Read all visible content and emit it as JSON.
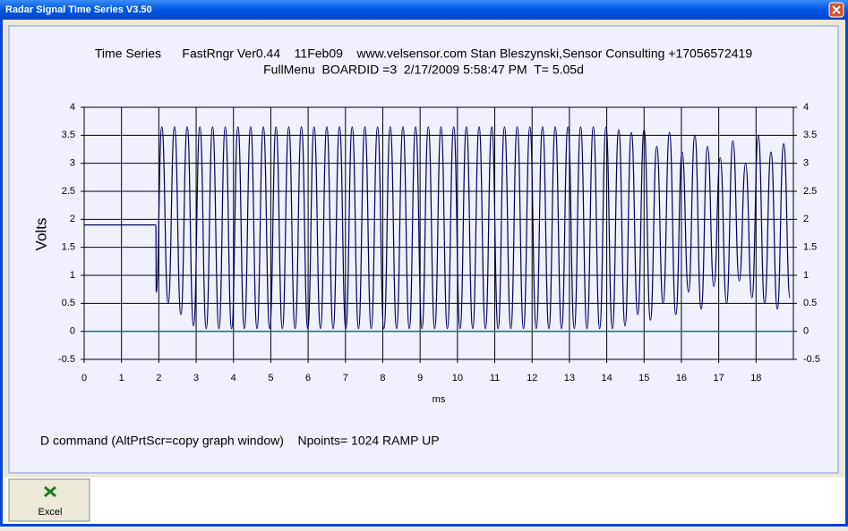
{
  "window": {
    "title": "Radar Signal Time Series V3.50"
  },
  "button": {
    "label": "Excel"
  },
  "chart_data": {
    "type": "line",
    "title": "Time Series      FastRngr Ver0.44    11Feb09    www.velsensor.com Stan Bleszynski,Sensor Consulting +17056572419",
    "subtitle": "FullMenu  BOARDID =3  2/17/2009 5:58:47 PM  T= 5.05d",
    "x_label": "ms",
    "y_label": "Volts",
    "footer": "D command (AltPrtScr=copy graph window)    Npoints= 1024 RAMP UP",
    "color": "#000060",
    "zero_line_color": "#008080",
    "grid": true,
    "xlim": [
      0,
      19
    ],
    "xticks": [
      0,
      1,
      2,
      3,
      4,
      5,
      6,
      7,
      8,
      9,
      10,
      11,
      12,
      13,
      14,
      15,
      16,
      17,
      18
    ],
    "ylim": [
      -0.5,
      4
    ],
    "yticks": [
      -0.5,
      0,
      0.5,
      1,
      1.5,
      2,
      2.5,
      3,
      3.5,
      4
    ],
    "x": [
      0,
      1.92,
      1.93,
      2.08,
      2.25,
      2.42,
      2.59,
      2.76,
      2.93,
      3.1,
      3.27,
      3.44,
      3.61,
      3.78,
      3.95,
      4.12,
      4.29,
      4.46,
      4.63,
      4.8,
      4.97,
      5.14,
      5.31,
      5.48,
      5.65,
      5.82,
      5.99,
      6.16,
      6.33,
      6.5,
      6.67,
      6.84,
      7.01,
      7.18,
      7.35,
      7.52,
      7.69,
      7.86,
      8.03,
      8.2,
      8.37,
      8.54,
      8.71,
      8.88,
      9.05,
      9.22,
      9.39,
      9.56,
      9.73,
      9.9,
      10.07,
      10.24,
      10.41,
      10.58,
      10.75,
      10.92,
      11.09,
      11.26,
      11.43,
      11.6,
      11.77,
      11.94,
      12.11,
      12.28,
      12.45,
      12.62,
      12.79,
      12.96,
      13.13,
      13.3,
      13.47,
      13.64,
      13.81,
      13.98,
      14.15,
      14.32,
      14.49,
      14.66,
      14.83,
      15.0,
      15.17,
      15.34,
      15.51,
      15.68,
      15.85,
      16.02,
      16.19,
      16.36,
      16.53,
      16.7,
      16.87,
      17.04,
      17.21,
      17.38,
      17.55,
      17.72,
      17.89,
      18.06,
      18.23,
      18.4,
      18.57,
      18.74,
      18.91
    ],
    "values": [
      1.9,
      1.9,
      0.7,
      3.65,
      0.5,
      3.65,
      0.3,
      3.65,
      0.1,
      3.65,
      0.05,
      3.65,
      0.05,
      3.65,
      0.05,
      3.65,
      0.05,
      3.65,
      0.05,
      3.65,
      0.05,
      3.65,
      0.05,
      3.65,
      0.05,
      3.65,
      0.05,
      3.65,
      0.05,
      3.65,
      0.05,
      3.65,
      0.05,
      3.65,
      0.05,
      3.65,
      0.05,
      3.65,
      0.05,
      3.65,
      0.05,
      3.65,
      0.05,
      3.65,
      0.05,
      3.65,
      0.05,
      3.65,
      0.05,
      3.65,
      0.05,
      3.65,
      0.05,
      3.65,
      0.05,
      3.65,
      0.05,
      3.65,
      0.05,
      3.65,
      0.05,
      3.65,
      0.05,
      3.65,
      0.05,
      3.65,
      0.05,
      3.65,
      0.05,
      3.65,
      0.05,
      3.65,
      0.05,
      3.65,
      0.05,
      3.6,
      0.1,
      3.55,
      0.3,
      3.6,
      0.2,
      3.3,
      0.5,
      3.55,
      0.3,
      3.2,
      0.7,
      3.5,
      0.4,
      3.3,
      0.8,
      3.1,
      0.5,
      3.4,
      0.9,
      3.0,
      0.6,
      3.5,
      0.5,
      3.2,
      0.4,
      3.35,
      0.6
    ]
  }
}
